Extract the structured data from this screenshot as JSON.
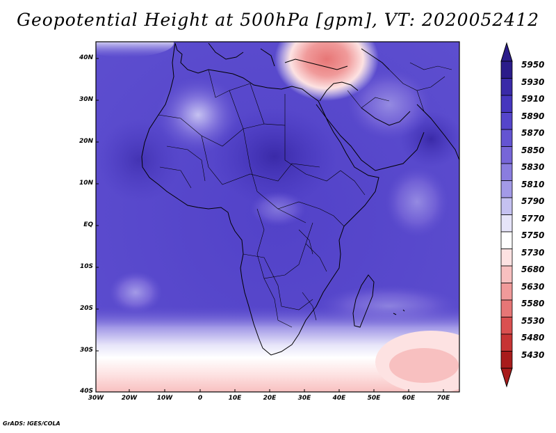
{
  "title": "Geopotential Height at 500hPa [gpm], VT: 2020052412",
  "credit": "GrADS: IGES/COLA",
  "map": {
    "lat_labels": [
      "40N",
      "30N",
      "20N",
      "10N",
      "EQ",
      "10S",
      "20S",
      "30S",
      "40S"
    ],
    "lon_labels": [
      "30W",
      "20W",
      "10W",
      "0",
      "10E",
      "20E",
      "30E",
      "40E",
      "50E",
      "60E",
      "70E"
    ]
  },
  "colorbar": {
    "labels": [
      "5950",
      "5930",
      "5910",
      "5890",
      "5870",
      "5850",
      "5830",
      "5810",
      "5790",
      "5770",
      "5750",
      "5730",
      "5680",
      "5630",
      "5580",
      "5530",
      "5480",
      "5430"
    ],
    "colors": [
      "#2b1c8a",
      "#3a2aa8",
      "#4636be",
      "#5545cb",
      "#6454d2",
      "#7766d8",
      "#8a7ddf",
      "#a39ae7",
      "#c5c1f1",
      "#e6e4f9",
      "#ffffff",
      "#fde2e2",
      "#f8c0c0",
      "#f09a9a",
      "#e77676",
      "#da5050",
      "#c73434",
      "#a81c1c"
    ]
  }
}
